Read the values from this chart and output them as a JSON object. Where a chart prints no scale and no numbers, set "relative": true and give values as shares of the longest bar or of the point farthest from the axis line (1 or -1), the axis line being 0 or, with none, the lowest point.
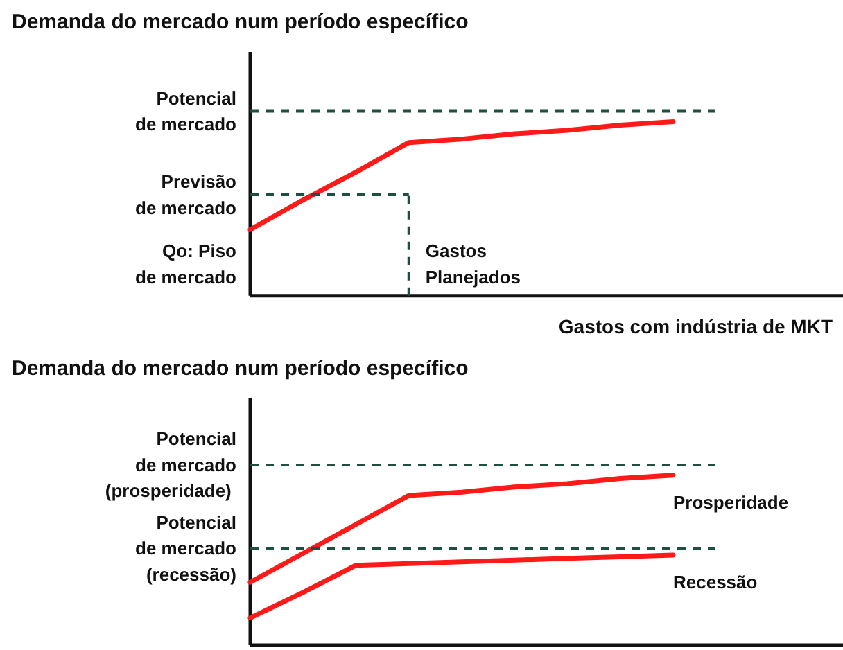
{
  "chart_data": [
    {
      "type": "line",
      "title": "Demanda do mercado num período específico",
      "xlabel": "Gastos com indústria de MKT",
      "relative": true,
      "tick_labels": false,
      "grid": false,
      "legend": false,
      "marker": "none",
      "line_style": "solid",
      "categories": [
        null,
        null,
        null,
        null,
        null,
        null,
        null,
        null,
        null
      ],
      "series": [
        {
          "color": "#ff1a1a",
          "values": [
            0.38,
            0.55,
            0.71,
            0.88,
            0.9,
            0.93,
            0.95,
            0.98,
            1.0
          ]
        }
      ],
      "ref_lines": [
        {
          "axis": "y",
          "value": 1.06,
          "label": "Potencial\nde mercado",
          "color": "#1f4f3f",
          "line_style": "dashed"
        },
        {
          "axis": "y",
          "value": 0.58,
          "label": "Previsão\nde mercado",
          "color": "#1f4f3f",
          "line_style": "dashed"
        }
      ],
      "annotations": [
        "Gastos\nPlanejados",
        "Qo: Piso\nde mercado"
      ]
    },
    {
      "type": "line",
      "title": "Demanda do mercado num período específico",
      "relative": true,
      "tick_labels": false,
      "grid": false,
      "legend": false,
      "marker": "none",
      "line_style": "solid",
      "categories": [
        null,
        null,
        null,
        null,
        null,
        null,
        null,
        null,
        null
      ],
      "series": [
        {
          "name": "Prosperidade",
          "color": "#ff1a1a",
          "values": [
            0.37,
            0.54,
            0.71,
            0.88,
            0.9,
            0.93,
            0.95,
            0.98,
            1.0
          ]
        },
        {
          "name": "Recessão",
          "color": "#ff1a1a",
          "values": [
            0.16,
            0.31,
            0.47,
            0.48,
            0.49,
            0.5,
            0.51,
            0.52,
            0.53
          ]
        }
      ],
      "ref_lines": [
        {
          "axis": "y",
          "value": 1.06,
          "label": "Potencial\nde mercado\n (prosperidade)",
          "color": "#1f4f3f",
          "line_style": "dashed"
        },
        {
          "axis": "y",
          "value": 0.57,
          "label": "Potencial\nde mercado\n(recessão)",
          "color": "#1f4f3f",
          "line_style": "dashed"
        }
      ]
    }
  ]
}
